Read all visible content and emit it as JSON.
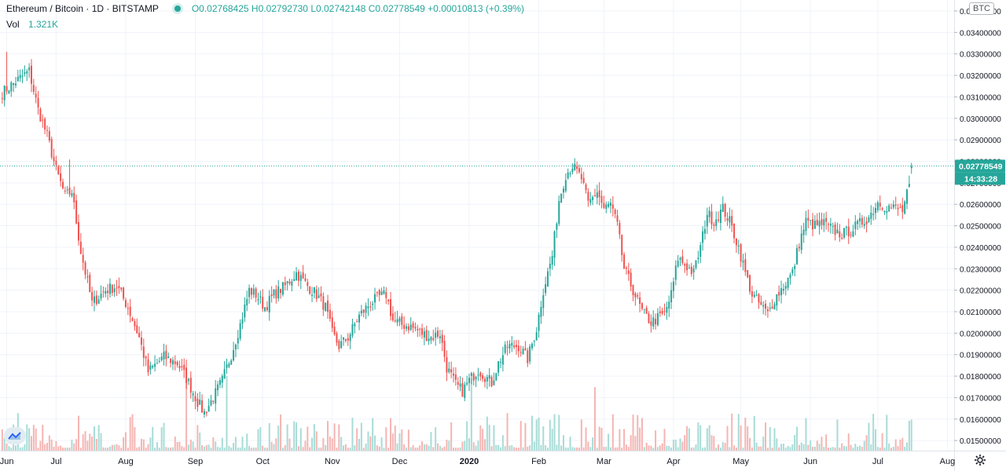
{
  "legend": {
    "symbol": "Ethereum / Bitcoin · 1D · BITSTAMP",
    "open": "O0.02768425",
    "high": "H0.02792730",
    "low": "L0.02742148",
    "close": "C0.02778549",
    "change": "+0.00010813 (+0.39%)"
  },
  "volume_legend": {
    "label": "Vol",
    "value": "1.321K"
  },
  "currency_badge": "BTC",
  "price_label": {
    "value": "0.02778549",
    "countdown": "14:33:28"
  },
  "colors": {
    "up": "#26a69a",
    "down": "#ef5350",
    "up_volume": "#a8dcd7",
    "down_volume": "#f5b5b3",
    "grid": "#f0f3fa",
    "axis_text": "#131722"
  },
  "icons": {
    "logo": "tradingview-logo-icon",
    "settings": "gear-icon"
  },
  "chart_data": {
    "type": "candlestick",
    "instrument": "Ethereum / Bitcoin",
    "interval": "1D",
    "exchange": "BITSTAMP",
    "grid": true,
    "ylim": [
      0.01453,
      0.03551
    ],
    "y_ticks": [
      "0.01500000",
      "0.01600000",
      "0.01700000",
      "0.01800000",
      "0.01900000",
      "0.02000000",
      "0.02100000",
      "0.02200000",
      "0.02300000",
      "0.02400000",
      "0.02500000",
      "0.02600000",
      "0.02700000",
      "0.02800000",
      "0.02900000",
      "0.03000000",
      "0.03100000",
      "0.03200000",
      "0.03300000",
      "0.03400000",
      "0.03500000"
    ],
    "x_ticks": [
      {
        "label": "Jun",
        "day": 0
      },
      {
        "label": "Jul",
        "day": 22
      },
      {
        "label": "Aug",
        "day": 53
      },
      {
        "label": "Sep",
        "day": 84
      },
      {
        "label": "Oct",
        "day": 114
      },
      {
        "label": "Nov",
        "day": 145
      },
      {
        "label": "Dec",
        "day": 175
      },
      {
        "label": "2020",
        "day": 206
      },
      {
        "label": "Feb",
        "day": 237
      },
      {
        "label": "Mar",
        "day": 266
      },
      {
        "label": "Apr",
        "day": 297
      },
      {
        "label": "May",
        "day": 327
      },
      {
        "label": "Jun",
        "day": 358
      },
      {
        "label": "Jul",
        "day": 388
      },
      {
        "label": "Aug",
        "day": 419
      }
    ],
    "x_range_days": [
      -3,
      422
    ],
    "anchors": [
      [
        -2,
        0.0312
      ],
      [
        5,
        0.0318
      ],
      [
        10,
        0.0322
      ],
      [
        14,
        0.0304
      ],
      [
        18,
        0.0292
      ],
      [
        22,
        0.0276
      ],
      [
        26,
        0.0264
      ],
      [
        29,
        0.0266
      ],
      [
        33,
        0.0238
      ],
      [
        38,
        0.0214
      ],
      [
        44,
        0.022
      ],
      [
        49,
        0.0222
      ],
      [
        54,
        0.0212
      ],
      [
        59,
        0.0198
      ],
      [
        63,
        0.0182
      ],
      [
        70,
        0.0189
      ],
      [
        76,
        0.0186
      ],
      [
        80,
        0.0179
      ],
      [
        85,
        0.0168
      ],
      [
        88,
        0.0163
      ],
      [
        92,
        0.017
      ],
      [
        96,
        0.0178
      ],
      [
        100,
        0.019
      ],
      [
        104,
        0.0204
      ],
      [
        108,
        0.022
      ],
      [
        111,
        0.0218
      ],
      [
        115,
        0.0212
      ],
      [
        119,
        0.0218
      ],
      [
        124,
        0.0222
      ],
      [
        129,
        0.0228
      ],
      [
        134,
        0.0222
      ],
      [
        138,
        0.0218
      ],
      [
        142,
        0.0212
      ],
      [
        145,
        0.02
      ],
      [
        148,
        0.0194
      ],
      [
        152,
        0.0198
      ],
      [
        157,
        0.0208
      ],
      [
        162,
        0.0214
      ],
      [
        166,
        0.0217
      ],
      [
        169,
        0.0218
      ],
      [
        172,
        0.0206
      ],
      [
        176,
        0.0204
      ],
      [
        180,
        0.0203
      ],
      [
        185,
        0.02
      ],
      [
        189,
        0.0198
      ],
      [
        193,
        0.02
      ],
      [
        196,
        0.0184
      ],
      [
        200,
        0.0176
      ],
      [
        203,
        0.0173
      ],
      [
        206,
        0.0178
      ],
      [
        210,
        0.0183
      ],
      [
        213,
        0.018
      ],
      [
        216,
        0.0177
      ],
      [
        219,
        0.0186
      ],
      [
        223,
        0.0194
      ],
      [
        228,
        0.0194
      ],
      [
        232,
        0.0188
      ],
      [
        236,
        0.0202
      ],
      [
        239,
        0.022
      ],
      [
        243,
        0.0236
      ],
      [
        246,
        0.0262
      ],
      [
        249,
        0.0274
      ],
      [
        252,
        0.0278
      ],
      [
        256,
        0.0272
      ],
      [
        259,
        0.026
      ],
      [
        263,
        0.0266
      ],
      [
        266,
        0.0258
      ],
      [
        269,
        0.026
      ],
      [
        272,
        0.025
      ],
      [
        275,
        0.023
      ],
      [
        279,
        0.022
      ],
      [
        283,
        0.021
      ],
      [
        287,
        0.0205
      ],
      [
        290,
        0.0207
      ],
      [
        293,
        0.0209
      ],
      [
        296,
        0.0218
      ],
      [
        299,
        0.0235
      ],
      [
        302,
        0.0232
      ],
      [
        306,
        0.0228
      ],
      [
        309,
        0.024
      ],
      [
        312,
        0.0256
      ],
      [
        315,
        0.0252
      ],
      [
        319,
        0.0258
      ],
      [
        322,
        0.0252
      ],
      [
        326,
        0.024
      ],
      [
        329,
        0.0228
      ],
      [
        332,
        0.0218
      ],
      [
        335,
        0.0214
      ],
      [
        339,
        0.0209
      ],
      [
        342,
        0.0216
      ],
      [
        346,
        0.0222
      ],
      [
        350,
        0.0228
      ],
      [
        353,
        0.0242
      ],
      [
        356,
        0.0252
      ],
      [
        360,
        0.025
      ],
      [
        364,
        0.0251
      ],
      [
        368,
        0.0248
      ],
      [
        372,
        0.0246
      ],
      [
        376,
        0.0248
      ],
      [
        380,
        0.0251
      ],
      [
        384,
        0.0254
      ],
      [
        388,
        0.0261
      ],
      [
        392,
        0.0259
      ],
      [
        396,
        0.0258
      ],
      [
        399,
        0.0257
      ],
      [
        402,
        0.0268
      ],
      [
        403,
        0.0277854
      ]
    ],
    "last_candle": {
      "open": 0.02768425,
      "high": 0.0279273,
      "low": 0.02742148,
      "close": 0.02778549,
      "change": 0.00010813,
      "change_pct": 0.39
    },
    "last_price": 0.02778549,
    "volume": {
      "last": 1321,
      "unit": "ETH",
      "max": 8000
    }
  }
}
